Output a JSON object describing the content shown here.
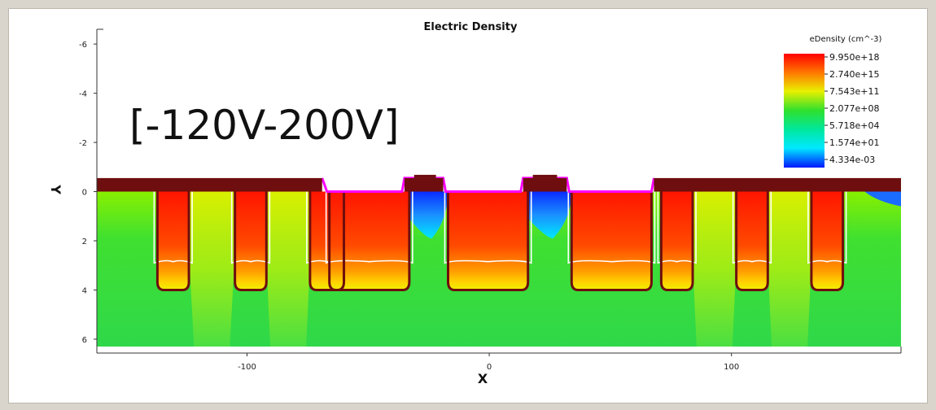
{
  "chart_data": {
    "type": "heatmap",
    "title": "Electric Density",
    "xlabel": "X",
    "ylabel": "Y",
    "xlim": [
      -162,
      170
    ],
    "ylim": [
      -6.6,
      6.3
    ],
    "y_inverted": true,
    "x_ticks": [
      -100,
      0,
      100
    ],
    "x_tick_labels": [
      "-100",
      "0",
      "100"
    ],
    "y_ticks": [
      -6,
      -4,
      -2,
      0,
      2,
      4,
      6
    ],
    "y_tick_labels": [
      "-6",
      "-4",
      "-2",
      "0",
      "2",
      "4",
      "6"
    ],
    "annotation": "[-120V-200V]",
    "legend": {
      "title": "eDensity (cm^-3)",
      "placement": "top-right",
      "labels": [
        "9.950e+18",
        "2.740e+15",
        "7.543e+11",
        "2.077e+08",
        "5.718e+04",
        "1.574e+01",
        "4.334e-03"
      ],
      "colors": [
        "#ff1a00",
        "#ff8c00",
        "#e8f000",
        "#2ee02e",
        "#00e89a",
        "#00e8ff",
        "#0a2cff"
      ]
    },
    "n_wells": [
      {
        "x0": -137,
        "x1": -124
      },
      {
        "x0": -105,
        "x1": -92
      },
      {
        "x0": -74,
        "x1": -60
      },
      {
        "x0": -66,
        "x1": -33
      },
      {
        "x0": -17,
        "x1": 16
      },
      {
        "x0": 34,
        "x1": 67
      },
      {
        "x0": 71,
        "x1": 84
      },
      {
        "x0": 102,
        "x1": 115
      },
      {
        "x0": 133,
        "x1": 146
      }
    ],
    "n_well_depth": 4.0,
    "colors": {
      "contact": "#6e0e0e",
      "oxide_edge": "#ff00ff",
      "junction": "#6e0e0e",
      "depletion_edge": "#ffffff",
      "substrate": "#34dd34",
      "n_region": "#ff2a00",
      "low_density": "#1a6cff"
    }
  }
}
